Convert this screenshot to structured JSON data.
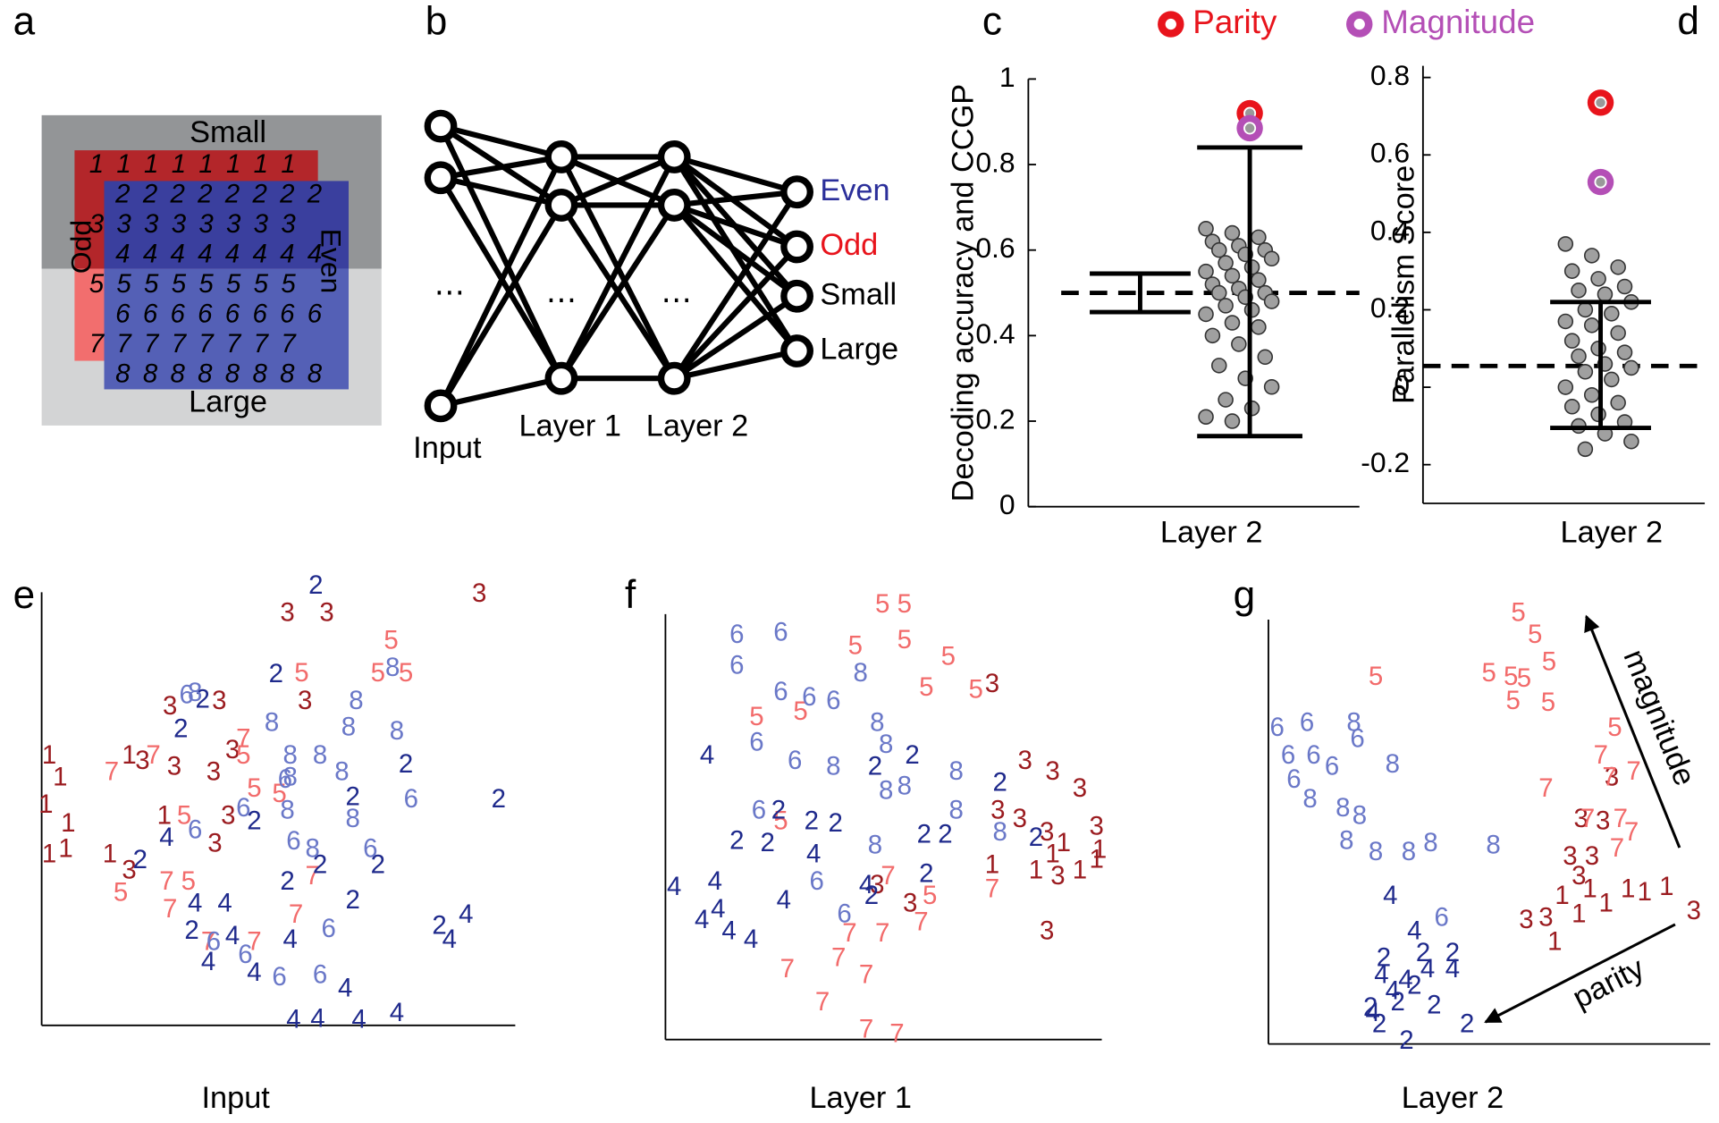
{
  "panel_a": {
    "label": "a",
    "top": "Small",
    "bottom": "Large",
    "left": "Odd",
    "right": "Even",
    "rows": [
      "1",
      "2",
      "3",
      "4",
      "5",
      "6",
      "7",
      "8"
    ]
  },
  "panel_b": {
    "label": "b",
    "input": "Input",
    "layers": [
      "Layer 1",
      "Layer 2"
    ],
    "ellipsis": "⋯",
    "outputs": [
      "Even",
      "Odd",
      "Small",
      "Large"
    ]
  },
  "chart_data": [
    {
      "type": "dichotomy",
      "label": "c",
      "ylabel": "Decoding accuracy and CCGP",
      "xlabel": "Layer 2",
      "ylim": [
        0,
        1
      ],
      "yticks": [
        0,
        0.2,
        0.4,
        0.6,
        0.8,
        1
      ],
      "chance": 0.5,
      "error_bars": [
        {
          "low": 0.455,
          "high": 0.545
        },
        {
          "low": 0.165,
          "high": 0.84
        }
      ],
      "values": [
        0.65,
        0.64,
        0.63,
        0.62,
        0.61,
        0.6,
        0.6,
        0.59,
        0.58,
        0.57,
        0.56,
        0.55,
        0.54,
        0.53,
        0.52,
        0.51,
        0.5,
        0.5,
        0.49,
        0.48,
        0.47,
        0.46,
        0.45,
        0.43,
        0.42,
        0.4,
        0.38,
        0.35,
        0.33,
        0.3,
        0.28,
        0.25,
        0.23,
        0.21,
        0.2
      ],
      "color": "#a0a0a0",
      "highlights": [
        {
          "name": "Parity",
          "color": "#e8141c",
          "value": 0.92
        },
        {
          "name": "Magnitude",
          "color": "#b44fb6",
          "value": 0.885
        }
      ]
    },
    {
      "type": "dichotomy",
      "label": "d",
      "ylabel": "Parallelism Score",
      "xlabel": "Layer 2",
      "ylim": [
        -0.3,
        0.83
      ],
      "yticks": [
        -0.2,
        0,
        0.2,
        0.4,
        0.6,
        0.8
      ],
      "chance": 0.055,
      "error_bars": [
        {
          "low": -0.105,
          "high": 0.22
        }
      ],
      "values": [
        0.37,
        0.34,
        0.31,
        0.3,
        0.28,
        0.26,
        0.25,
        0.24,
        0.22,
        0.2,
        0.19,
        0.17,
        0.16,
        0.14,
        0.12,
        0.1,
        0.09,
        0.08,
        0.06,
        0.05,
        0.04,
        0.02,
        0.0,
        -0.02,
        -0.04,
        -0.05,
        -0.07,
        -0.09,
        -0.1,
        -0.12,
        -0.14,
        -0.16
      ],
      "color": "#a0a0a0",
      "highlights": [
        {
          "color": "#e8141c",
          "value": 0.735
        },
        {
          "color": "#b44fb6",
          "value": 0.53
        }
      ]
    },
    {
      "type": "digit_scatter",
      "label": "e",
      "xlabel": "Input",
      "xlim": [
        0,
        100
      ],
      "ylim": [
        0,
        100
      ],
      "series": [
        {
          "name": "1",
          "color": "#9b1c20",
          "x": [
            1.6,
            3.9,
            0.9,
            5.6,
            5.1,
            1.6,
            14.4,
            25.9,
            18.5
          ],
          "y": [
            60.5,
            55.6,
            49.4,
            45.2,
            39.5,
            38.3,
            38.3,
            46.9,
            60.5
          ]
        },
        {
          "name": "3",
          "color": "#9b1c20",
          "x": [
            51.9,
            60.2,
            92.4,
            27.1,
            37.5,
            55.6,
            28,
            21.3,
            40.3,
            39.4,
            36.6,
            18.5,
            36.3
          ],
          "y": [
            92.6,
            92.6,
            97,
            71.6,
            72.8,
            72.8,
            58,
            59.3,
            61.7,
            46.9,
            40.7,
            34.6,
            56.8
          ]
        },
        {
          "name": "5",
          "color": "#f26b6b",
          "x": [
            73.8,
            71,
            76.9,
            54.9,
            42.6,
            44.9,
            30.1,
            31,
            16.7,
            50.2
          ],
          "y": [
            86.4,
            79,
            79,
            79,
            60.5,
            53.1,
            46.9,
            32.1,
            29.6,
            51.9
          ]
        },
        {
          "name": "7",
          "color": "#f26b6b",
          "x": [
            14.8,
            23.6,
            42.6,
            26.4,
            27.1,
            35.2,
            53.7,
            57.2,
            44.9
          ],
          "y": [
            56.8,
            60.5,
            64.2,
            32.1,
            25.9,
            18.5,
            24.7,
            33.3,
            18.5
          ]
        },
        {
          "name": "2",
          "color": "#1f2a8c",
          "x": [
            57.9,
            49.5,
            34,
            29.4,
            76.9,
            65.7,
            96.5,
            44.9,
            20.8,
            58.8,
            71,
            51.9,
            31.7,
            65.7,
            84
          ],
          "y": [
            98.8,
            78.8,
            73.1,
            66.4,
            58.5,
            51.1,
            50.6,
            45.7,
            37,
            35.8,
            35.8,
            32.1,
            21,
            27.9,
            22.2
          ]
        },
        {
          "name": "4",
          "color": "#1f2a8c",
          "x": [
            26.4,
            32.4,
            38.7,
            40.3,
            52.5,
            35.2,
            44.9,
            64.1,
            58.3,
            53.2,
            67,
            75,
            89.6,
            86.1
          ],
          "y": [
            42,
            27.2,
            27.2,
            19.8,
            19,
            14,
            11.6,
            8.1,
            1.2,
            1,
            1,
            2.5,
            24.7,
            19
          ]
        },
        {
          "name": "6",
          "color": "#6a78c8",
          "x": [
            30.6,
            42.6,
            51.4,
            53.2,
            32.4,
            36.3,
            43,
            50.2,
            58.8,
            60.6,
            78,
            69.4
          ],
          "y": [
            74.1,
            48.6,
            55.1,
            41.2,
            43.7,
            18.5,
            15.6,
            10.6,
            11.1,
            21.5,
            50.6,
            39.5
          ]
        },
        {
          "name": "8",
          "color": "#6a78c8",
          "x": [
            32.4,
            48.6,
            66.4,
            74.1,
            64.8,
            52.5,
            58.8,
            52.5,
            75,
            63.4,
            65.7,
            57.2,
            51.9
          ],
          "y": [
            74.6,
            67.9,
            72.8,
            80.2,
            66.9,
            60.5,
            60.5,
            55.6,
            65.9,
            56.8,
            46.2,
            39.5,
            48.1
          ]
        }
      ]
    },
    {
      "type": "digit_scatter",
      "label": "f",
      "xlabel": "Layer 1",
      "xlim": [
        0,
        100
      ],
      "ylim": [
        0,
        100
      ],
      "series": [
        {
          "name": "1",
          "color": "#9b1c20",
          "x": [
            74.5,
            84.5,
            88.3,
            94.5,
            98.3,
            99,
            90.8
          ],
          "y": [
            39.5,
            38.3,
            42,
            38.3,
            40.8,
            43,
            44.5
          ]
        },
        {
          "name": "3",
          "color": "#9b1c20",
          "x": [
            74.5,
            82,
            88.3,
            94.5,
            75.8,
            80.8,
            87,
            98.3,
            55.8,
            87,
            89.5,
            48.3
          ],
          "y": [
            80.8,
            63.3,
            60.8,
            57,
            52,
            50,
            47,
            48.3,
            30.8,
            24.5,
            37,
            35
          ]
        },
        {
          "name": "5",
          "color": "#f26b6b",
          "x": [
            49.5,
            54.5,
            54.5,
            43.3,
            64.5,
            59.5,
            70.8,
            30.8,
            20.8,
            26.3,
            60.3
          ],
          "y": [
            99,
            99,
            90.8,
            89.5,
            87,
            80,
            79.5,
            74.5,
            73.3,
            49.5,
            32.5
          ]
        },
        {
          "name": "7",
          "color": "#f26b6b",
          "x": [
            50.8,
            74.5,
            58.3,
            42,
            49.5,
            27.8,
            39.5,
            45.8,
            35.8,
            45.8,
            52.8
          ],
          "y": [
            37,
            34,
            26.5,
            24,
            24,
            15.8,
            18.3,
            14.5,
            8.3,
            2,
            1
          ]
        },
        {
          "name": "2",
          "color": "#1f2a8c",
          "x": [
            25.8,
            33.3,
            16.3,
            23.3,
            38.8,
            47.8,
            56.3,
            76.3,
            59,
            63.8,
            59.5,
            47,
            84.5
          ],
          "y": [
            52,
            49.5,
            45,
            44.5,
            49,
            62,
            64.5,
            58.3,
            46.5,
            46.5,
            37.5,
            32.5,
            45.8
          ]
        },
        {
          "name": "4",
          "color": "#1f2a8c",
          "x": [
            2,
            9.5,
            11.3,
            12,
            8.3,
            19.5,
            27,
            33.8,
            45.8,
            14.5
          ],
          "y": [
            34.5,
            64.5,
            35.8,
            29.5,
            27,
            22.5,
            31.5,
            42,
            35,
            24.5
          ]
        },
        {
          "name": "6",
          "color": "#6a78c8",
          "x": [
            16.3,
            26.3,
            16.3,
            26.3,
            32.8,
            20.8,
            38.3,
            21.3,
            29.5,
            40.8,
            34.5
          ],
          "y": [
            92,
            92.5,
            85,
            79,
            77.8,
            67.5,
            77,
            52,
            63.3,
            28.3,
            35.8
          ]
        },
        {
          "name": "8",
          "color": "#6a78c8",
          "x": [
            44.5,
            48.3,
            50.3,
            38.3,
            50.3,
            54.5,
            66.3,
            66.3,
            47.8,
            76.3
          ],
          "y": [
            83.3,
            72,
            67,
            62,
            56.5,
            57.5,
            60.8,
            52,
            44,
            47
          ]
        }
      ]
    },
    {
      "type": "digit_scatter",
      "label": "g",
      "xlabel": "Layer 2",
      "xlim": [
        0,
        100
      ],
      "ylim": [
        0,
        100
      ],
      "annotations": [
        "magnitude",
        "parity"
      ],
      "series": [
        {
          "name": "1",
          "color": "#9b1c20",
          "x": [
            67,
            73.3,
            77,
            82,
            85.8,
            90.8,
            70.8,
            65.3
          ],
          "y": [
            33.5,
            35,
            31.8,
            35,
            34.3,
            35.5,
            29.3,
            23
          ]
        },
        {
          "name": "3",
          "color": "#9b1c20",
          "x": [
            71.3,
            76.3,
            68.8,
            73.8,
            70.8,
            58.8,
            63.3,
            97,
            78.3
          ],
          "y": [
            51,
            50.5,
            42.5,
            42.5,
            38,
            28,
            28.5,
            30,
            60.5
          ]
        },
        {
          "name": "5",
          "color": "#f26b6b",
          "x": [
            57,
            60.8,
            64,
            50.3,
            55.3,
            58.3,
            55.8,
            63.8,
            24.5,
            79
          ],
          "y": [
            98,
            93,
            86.8,
            84.3,
            83.5,
            83,
            78,
            77.5,
            83.5,
            71.8
          ]
        },
        {
          "name": "7",
          "color": "#f26b6b",
          "x": [
            75.8,
            77.8,
            83.3,
            63.3,
            72.8,
            80.3,
            82.8,
            79.5
          ],
          "y": [
            65.5,
            60.5,
            61.8,
            58,
            51,
            51,
            48,
            44.3
          ]
        },
        {
          "name": "2",
          "color": "#1f2a8c",
          "x": [
            45.3,
            25.3,
            31.5,
            26.3,
            35.3,
            42,
            33.3,
            37.8,
            23.3,
            29.5
          ],
          "y": [
            4.3,
            4.3,
            0.5,
            19.3,
            20.5,
            20.5,
            13,
            8.5,
            8,
            9.3
          ]
        },
        {
          "name": "4",
          "color": "#1f2a8c",
          "x": [
            27.8,
            33.3,
            36.3,
            42,
            25.8,
            31.3,
            23.8,
            28.3
          ],
          "y": [
            33.5,
            25.5,
            16.8,
            16.8,
            15.5,
            14.3,
            6.8,
            11.8
          ]
        },
        {
          "name": "6",
          "color": "#6a78c8",
          "x": [
            2,
            8.8,
            4.5,
            10.3,
            14.5,
            20.3,
            39.5,
            5.8
          ],
          "y": [
            71.8,
            73,
            65.5,
            65.5,
            63,
            69.3,
            28.5,
            60
          ]
        },
        {
          "name": "8",
          "color": "#6a78c8",
          "x": [
            19.5,
            28.3,
            17,
            20.8,
            17.8,
            24.5,
            37,
            32,
            51.3,
            9.5
          ],
          "y": [
            73,
            63.5,
            53.5,
            51.8,
            46,
            43.5,
            45.5,
            43.5,
            45,
            55.5
          ]
        }
      ]
    }
  ]
}
